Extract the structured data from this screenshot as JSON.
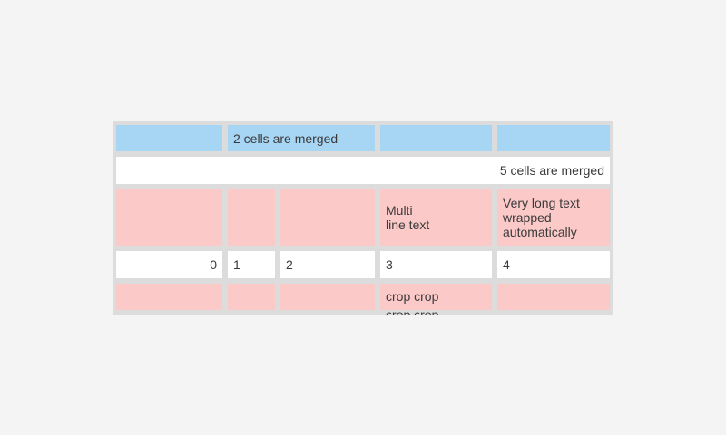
{
  "page": {
    "background_color": "#f4f4f4"
  },
  "table": {
    "description": "table demo with merged, multiline and cropped cells",
    "colors": {
      "grid_gray": "#dcdcdc",
      "header_blue": "#a7d5f4",
      "row_pink": "#fac9c8",
      "row_white": "#ffffff",
      "text": "#3a3a3a"
    },
    "rows": {
      "header": {
        "merged_label": "2 cells are merged"
      },
      "merged5": {
        "label": "5 cells are merged"
      },
      "tall": {
        "multiline_label": "Multi\nline text",
        "wrapped_label": "Very long text wrapped automatically"
      },
      "numbers": {
        "col0": "0",
        "col1": "1",
        "col2": "2",
        "col3": "3",
        "col4": "4"
      },
      "cropped": {
        "crop_label": "crop crop\ncrop crop"
      }
    }
  }
}
